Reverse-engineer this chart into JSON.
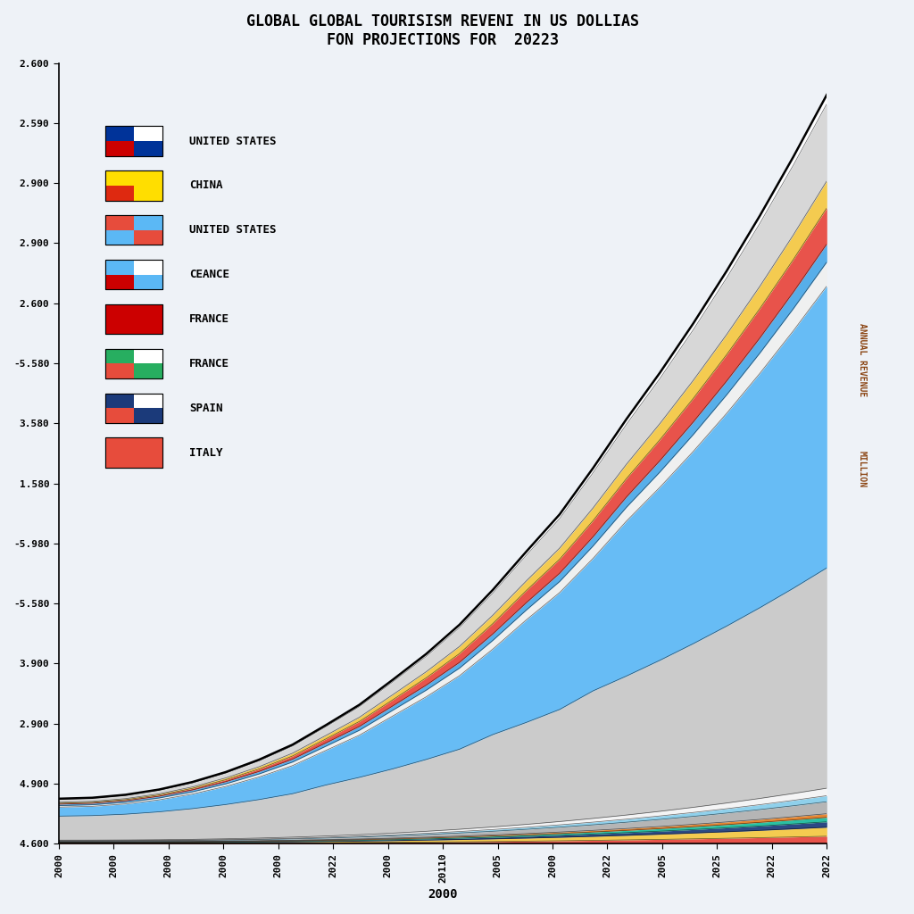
{
  "title_line1": "GLOBAL GLOBAL TOURISISM REVENI IN US DOLLIAS",
  "title_line2": "FON PROJECTIONS FOR  20223",
  "xlabel": "2000",
  "ylabel_top": "ANNUAL REVENUE",
  "ylabel_bottom": "MILLION",
  "background_color": "#EEF2F7",
  "legend_labels": [
    "UNITED STATES",
    "CHINA",
    "UNITED STATES",
    "CEANCE",
    "FRANCE",
    "FRANCE",
    "SPAIN",
    "ITALY"
  ],
  "legend_colors": [
    "#C8D8E8",
    "#F5C842",
    "#5BB8F5",
    "#CCCCCC",
    "#E74C3C",
    "#27AE60",
    "#1B3A7A",
    "#E8453C"
  ],
  "ytick_labels": [
    "4.600",
    "4.900",
    "2.900",
    "3.900",
    "-5.580",
    "-5.980",
    "1.580",
    "3.580",
    "-5.580",
    "2.600",
    "2.900",
    "2.900",
    "2.590",
    "2.600"
  ],
  "xtick_labels": [
    "2000",
    "2000",
    "2000",
    "2000",
    "2000",
    "2022",
    "2000",
    "20110",
    "2005",
    "2000",
    "2022",
    "2005",
    "2025",
    "2022",
    "2022"
  ]
}
